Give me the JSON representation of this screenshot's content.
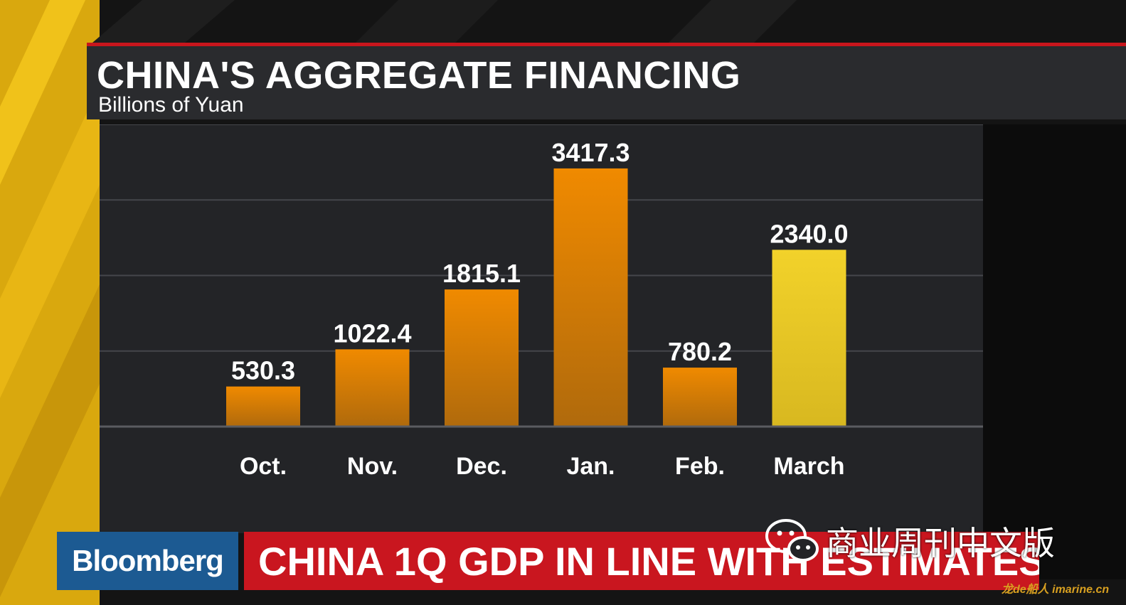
{
  "chart_data": {
    "type": "bar",
    "title": "CHINA'S AGGREGATE FINANCING",
    "subtitle": "Billions of Yuan",
    "categories": [
      "Oct.",
      "Nov.",
      "Dec.",
      "Jan.",
      "Feb.",
      "March"
    ],
    "values": [
      530.3,
      1022.4,
      1815.1,
      3417.3,
      780.2,
      2340.0
    ],
    "value_labels": [
      "530.3",
      "1022.4",
      "1815.1",
      "3417.3",
      "780.2",
      "2340.0"
    ],
    "highlighted_category": "March",
    "ylim": [
      0,
      4000
    ],
    "grid": true,
    "xlabel": "",
    "ylabel": "",
    "colors": {
      "bar_bottom": "#b06a0c",
      "bar_top": "#f08a00",
      "highlight_top": "#f2d22a",
      "highlight_bottom": "#d8b820",
      "gridline": "#45464b",
      "baseline": "#5a5b60",
      "text": "#ffffff"
    }
  },
  "ticker": {
    "brand": "Bloomberg",
    "headline": "CHINA 1Q GDP IN LINE WITH ESTIMATES"
  },
  "watermark": {
    "text": "商业周刊中文版",
    "icon": "wechat-icon",
    "site": "龙de船人 imarine.cn"
  }
}
